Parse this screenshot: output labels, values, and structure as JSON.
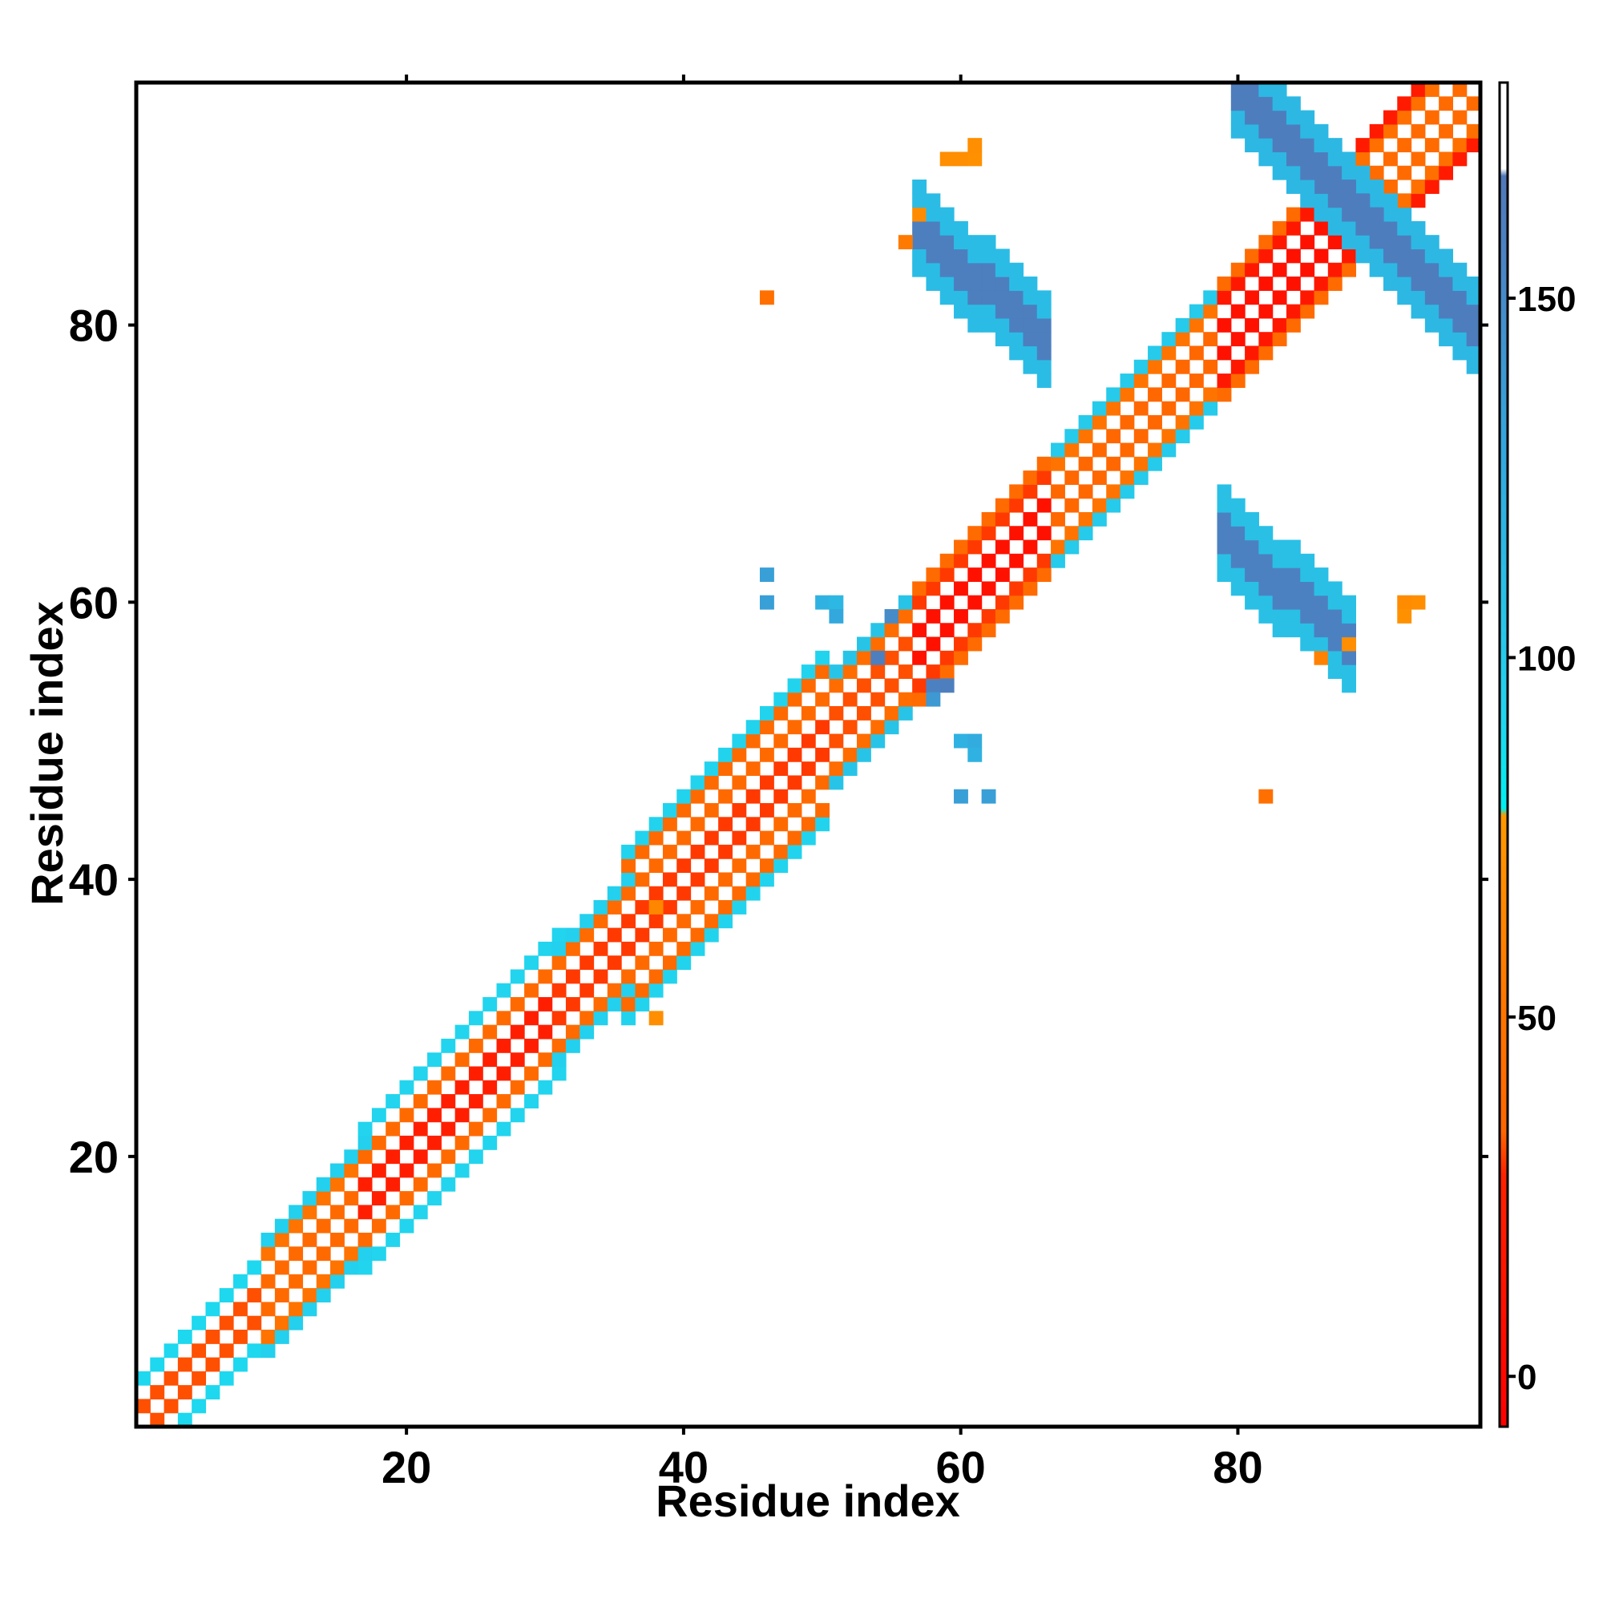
{
  "chart_data": {
    "type": "heatmap",
    "title": "",
    "xlabel": "Residue index",
    "ylabel": "Residue index",
    "xlim": [
      1,
      97
    ],
    "ylim": [
      1,
      97
    ],
    "x_ticks": [
      20,
      40,
      60,
      80
    ],
    "y_ticks": [
      20,
      40,
      60,
      80
    ],
    "colorbar": {
      "ticks": [
        0,
        50,
        100,
        150
      ],
      "range": [
        -7,
        180
      ],
      "stops": [
        {
          "value": -7,
          "color": "#ff0000"
        },
        {
          "value": 28,
          "color": "#ff2200"
        },
        {
          "value": 34,
          "color": "#ff6600"
        },
        {
          "value": 53,
          "color": "#ff7700"
        },
        {
          "value": 78,
          "color": "#ff9900"
        },
        {
          "value": 79,
          "color": "#00f0f0"
        },
        {
          "value": 92,
          "color": "#22d4ee"
        },
        {
          "value": 128,
          "color": "#33a8dd"
        },
        {
          "value": 155,
          "color": "#4b84c4"
        },
        {
          "value": 167,
          "color": "#5078b8"
        },
        {
          "value": 168,
          "color": "#ffffff"
        },
        {
          "value": 180,
          "color": "#ffffff"
        }
      ]
    },
    "diagonal_blocks": [
      {
        "from": 1,
        "to": 9,
        "half_width": 3,
        "inner": 32,
        "outer": 38,
        "edge": 90
      },
      {
        "from": 10,
        "to": 17,
        "half_width": 4,
        "inner": 38,
        "outer": 48,
        "edge": 95
      },
      {
        "from": 17,
        "to": 31,
        "half_width": 5,
        "inner": 25,
        "outer": 38,
        "edge": 92
      },
      {
        "from": 31,
        "to": 36,
        "half_width": 4,
        "inner": 30,
        "outer": 40,
        "edge": 95
      },
      {
        "from": 36,
        "to": 50,
        "half_width": 6,
        "inner": 30,
        "outer": 38,
        "edge": 93
      },
      {
        "from": 51,
        "to": 57,
        "half_width": 4,
        "inner": 32,
        "outer": 42,
        "edge": 105
      },
      {
        "from": 57,
        "to": 67,
        "half_width": 4,
        "inner": 10,
        "outer": 30,
        "edge": 40
      },
      {
        "from": 67,
        "to": 79,
        "half_width": 4,
        "inner": 35,
        "outer": 50,
        "edge": 100
      },
      {
        "from": 79,
        "to": 89,
        "half_width": 4,
        "inner": 10,
        "outer": 18,
        "edge": 40
      },
      {
        "from": 89,
        "to": 97,
        "half_width": 4,
        "inner": 40,
        "outer": 45,
        "edge": 20
      }
    ],
    "antiparallel_bands": [
      {
        "x_from": 57,
        "x_to": 66,
        "y_from": 87,
        "y_to": 79,
        "width": 3,
        "core": 160,
        "edge": 112
      },
      {
        "x_from": 79,
        "x_to": 88,
        "y_from": 65,
        "y_to": 57,
        "width": 3,
        "core": 158,
        "edge": 108
      },
      {
        "x_from": 80,
        "x_to": 97,
        "y_from": 97,
        "y_to": 80,
        "width": 3,
        "core": 162,
        "edge": 115
      }
    ],
    "points": [
      [
        59,
        92,
        70
      ],
      [
        60,
        92,
        70
      ],
      [
        61,
        92,
        72
      ],
      [
        61,
        93,
        70
      ],
      [
        57,
        88,
        68
      ],
      [
        56,
        86,
        55
      ],
      [
        46,
        82,
        45
      ],
      [
        46,
        62,
        135
      ],
      [
        46,
        60,
        135
      ],
      [
        50,
        60,
        120
      ],
      [
        51,
        60,
        115
      ],
      [
        51,
        59,
        128
      ],
      [
        60,
        50,
        120
      ],
      [
        61,
        50,
        125
      ],
      [
        61,
        49,
        120
      ],
      [
        60,
        46,
        135
      ],
      [
        62,
        46,
        135
      ],
      [
        38,
        38,
        65
      ],
      [
        38,
        30,
        70
      ],
      [
        82,
        46,
        45
      ],
      [
        92,
        60,
        68
      ],
      [
        93,
        60,
        70
      ],
      [
        92,
        59,
        72
      ],
      [
        86,
        56,
        60
      ],
      [
        88,
        57,
        70
      ],
      [
        55,
        59,
        150
      ],
      [
        54,
        56,
        160
      ],
      [
        58,
        54,
        158
      ],
      [
        59,
        54,
        160
      ],
      [
        58,
        53,
        140
      ]
    ]
  }
}
